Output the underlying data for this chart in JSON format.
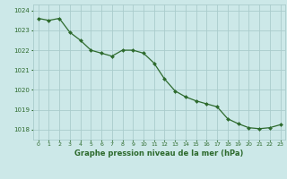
{
  "x": [
    0,
    1,
    2,
    3,
    4,
    5,
    6,
    7,
    8,
    9,
    10,
    11,
    12,
    13,
    14,
    15,
    16,
    17,
    18,
    19,
    20,
    21,
    22,
    23
  ],
  "y": [
    1023.6,
    1023.5,
    1023.6,
    1022.9,
    1022.5,
    1022.0,
    1021.85,
    1021.7,
    1022.0,
    1022.0,
    1021.85,
    1021.35,
    1020.55,
    1019.95,
    1019.65,
    1019.45,
    1019.3,
    1019.15,
    1018.55,
    1018.3,
    1018.1,
    1018.05,
    1018.1,
    1018.25
  ],
  "ylim": [
    1017.5,
    1024.3
  ],
  "yticks": [
    1018,
    1019,
    1020,
    1021,
    1022,
    1023,
    1024
  ],
  "xticks": [
    0,
    1,
    2,
    3,
    4,
    5,
    6,
    7,
    8,
    9,
    10,
    11,
    12,
    13,
    14,
    15,
    16,
    17,
    18,
    19,
    20,
    21,
    22,
    23
  ],
  "line_color": "#2d6a2d",
  "marker_color": "#2d6a2d",
  "bg_color": "#cce8e8",
  "grid_color": "#aacccc",
  "xlabel": "Graphe pression niveau de la mer (hPa)",
  "xlabel_color": "#2d6a2d",
  "tick_color": "#2d6a2d"
}
